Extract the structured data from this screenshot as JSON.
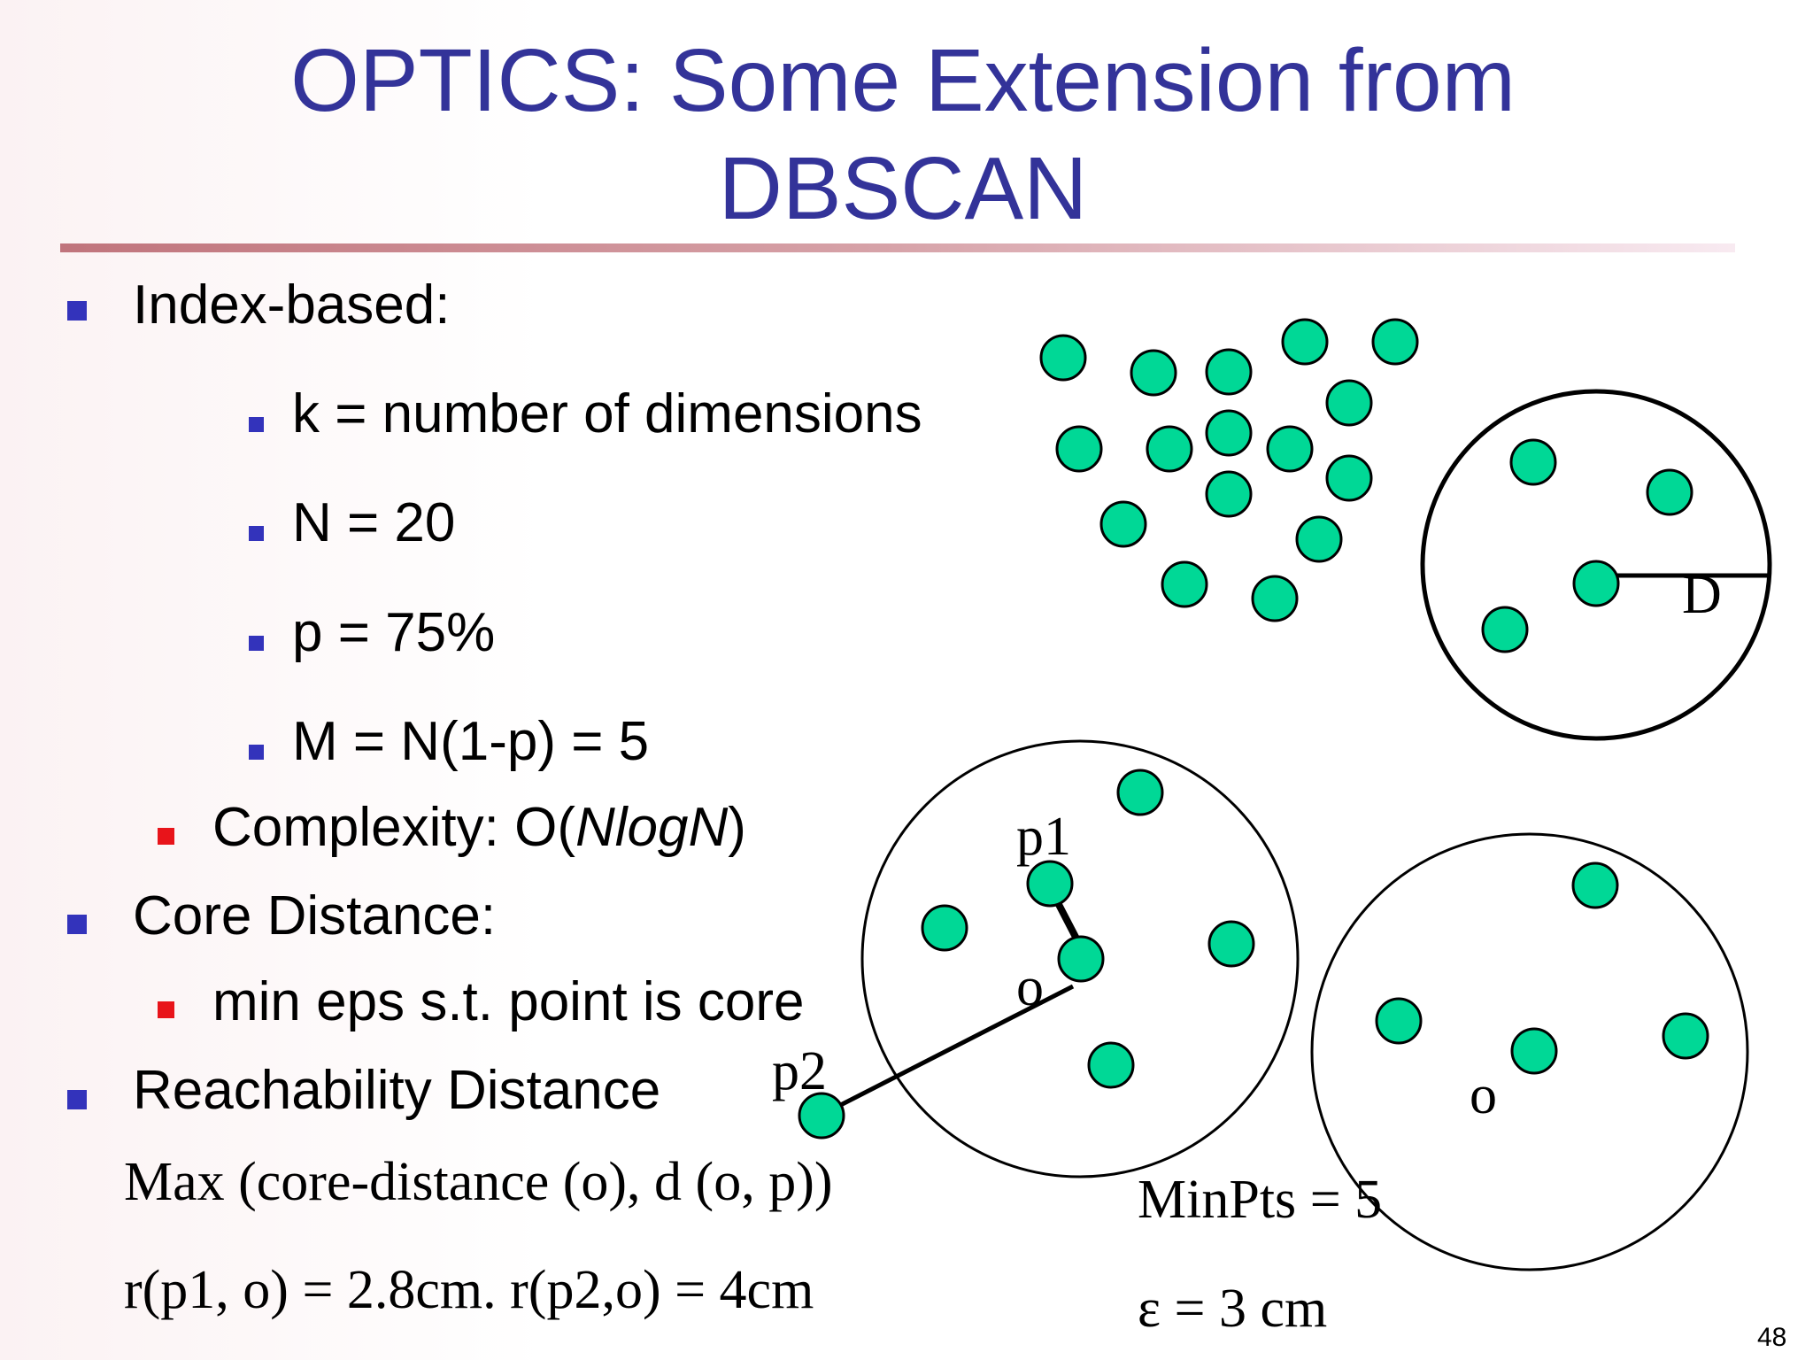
{
  "title": {
    "line1": "OPTICS: Some Extension from",
    "line2": "DBSCAN"
  },
  "bullets": {
    "index_based": "Index-based:",
    "k": "k = number of dimensions",
    "n": "N = 20",
    "p": "p = 75%",
    "m": "M = N(1-p) = 5",
    "complexity_label": "Complexity:  O(",
    "complexity_italic": "NlogN",
    "complexity_close": ")",
    "core_distance": "Core Distance:",
    "min_eps": "min eps s.t. point is core",
    "reachability": "Reachability Distance"
  },
  "formulas": {
    "max": "Max (core-distance (o), d (o, p))",
    "r_values": "r(p1, o) = 2.8cm.  r(p2,o) = 4cm"
  },
  "diagram_labels": {
    "d": "D",
    "p1": "p1",
    "p2": "p2",
    "o_left": "o",
    "o_right": "o",
    "minpts": "MinPts = 5",
    "eps": "ε  = 3 cm"
  },
  "colors": {
    "title": "#333399",
    "point_fill": "#00d896",
    "bullet_blue": "#3333bb",
    "bullet_red": "#e8141a"
  },
  "page_number": "48"
}
